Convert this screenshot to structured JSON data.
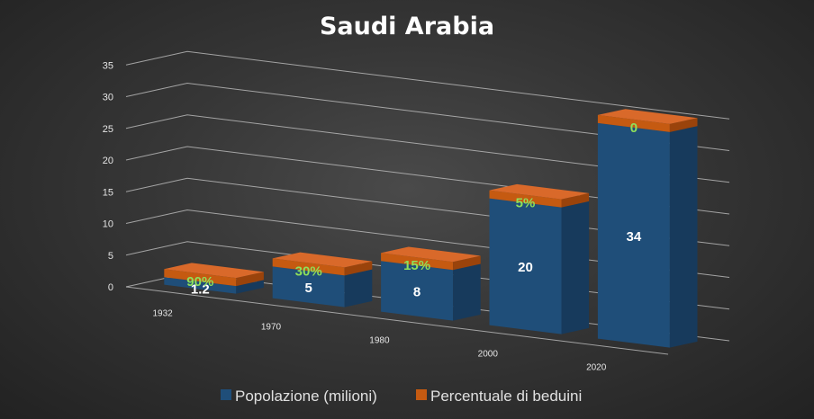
{
  "chart_data": {
    "type": "bar",
    "title": "Saudi Arabia",
    "categories": [
      "1932",
      "1970",
      "1980",
      "2000",
      "2020"
    ],
    "series": [
      {
        "name": "Popolazione (milioni)",
        "values": [
          1.2,
          5,
          8,
          20,
          34
        ],
        "labels": [
          "1.2",
          "5",
          "8",
          "20",
          "34"
        ],
        "color": "#1f4e79"
      },
      {
        "name": "Percentuale di beduini",
        "values": [
          0.9,
          0.3,
          0.15,
          0.05,
          0
        ],
        "labels": [
          "90%",
          "30%",
          "15%",
          "5%",
          "0"
        ],
        "color": "#c55a11"
      }
    ],
    "yticks": [
      0,
      5,
      10,
      15,
      20,
      25,
      30,
      35
    ],
    "ylim": [
      0,
      35
    ],
    "stacked": true,
    "grid": true,
    "legend": "bottom",
    "label_colors": {
      "value": "#ffffff",
      "percent": "#8fe05a"
    }
  }
}
